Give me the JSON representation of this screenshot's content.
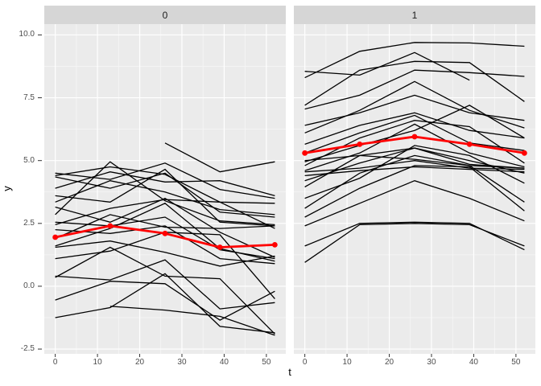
{
  "chart_data": {
    "type": "line",
    "title": "",
    "xlabel": "t",
    "ylabel": "y",
    "facet_variable_values": [
      "0",
      "1"
    ],
    "x": [
      0,
      13,
      26,
      39,
      52
    ],
    "x_tick_labels": [
      "0",
      "10",
      "20",
      "30",
      "40",
      "50"
    ],
    "x_tick_values": [
      0,
      10,
      20,
      30,
      40,
      50
    ],
    "x_minor_values": [
      5,
      15,
      25,
      35,
      45
    ],
    "y_tick_labels": [
      "10.0",
      "7.5",
      "5.0",
      "2.5",
      "0.0",
      "-2.5"
    ],
    "y_tick_values": [
      10.0,
      7.5,
      5.0,
      2.5,
      0.0,
      -2.5
    ],
    "y_minor_values": [
      8.75,
      6.25,
      3.75,
      1.25,
      -1.25
    ],
    "xlim": [
      -2.6,
      54.6
    ],
    "ylim": [
      -2.69,
      10.43
    ],
    "grid": "major+minor white on grey panel",
    "legend_position": "none",
    "colors": {
      "panel_background": "#EBEBEB",
      "strip_background": "#D6D6D6",
      "grid_major": "#FFFFFF",
      "grid_minor": "#F7F7F7",
      "trajectory_line": "#000000",
      "mean_line": "#FF0000",
      "axis_text": "#4D4D4D",
      "axis_tick_mark": "#333333",
      "figure_background": "#FFFFFF"
    },
    "facets": [
      {
        "label": "0",
        "mean_series": {
          "name": "mean",
          "values": [
            1.95,
            2.4,
            2.1,
            1.55,
            1.65
          ]
        },
        "lines": [
          [
            2.85,
            4.95,
            3.4,
            2.6,
            2.45
          ],
          [
            4.5,
            4.25,
            4.9,
            3.85,
            3.5
          ],
          [
            4.4,
            4.75,
            4.45,
            3.35,
            3.3
          ],
          [
            3.9,
            4.55,
            4.15,
            4.2,
            3.6
          ],
          [
            3.6,
            3.35,
            4.65,
            2.55,
            2.4
          ],
          [
            3.35,
            4.2,
            3.75,
            3.05,
            2.85
          ],
          [
            3.15,
            2.55,
            3.5,
            2.15,
            1.15
          ],
          [
            2.55,
            2.4,
            2.75,
            1.45,
            1.1
          ],
          [
            2.45,
            3.1,
            3.45,
            3.35,
            2.3
          ],
          [
            2.25,
            2.1,
            2.4,
            1.1,
            0.9
          ],
          [
            1.9,
            2.85,
            2.35,
            2.3,
            2.4
          ],
          [
            1.6,
            2.3,
            3.3,
            1.5,
            1.0
          ],
          [
            1.1,
            1.4,
            2.15,
            2.05,
            -0.5
          ],
          [
            0.4,
            0.25,
            1.05,
            -0.9,
            -0.65
          ],
          [
            0.35,
            1.55,
            0.4,
            0.3,
            -1.9
          ],
          [
            -0.55,
            0.2,
            0.1,
            -1.35,
            -0.2
          ],
          [
            -1.25,
            -0.85,
            0.5,
            -1.6,
            -1.85
          ],
          [
            null,
            -0.8,
            -0.95,
            -1.2,
            -1.95
          ],
          [
            null,
            null,
            5.7,
            4.55,
            4.95
          ],
          [
            1.55,
            1.8,
            1.35,
            0.8,
            1.2
          ],
          [
            4.35,
            3.9,
            4.5,
            2.95,
            2.75
          ]
        ]
      },
      {
        "label": "1",
        "mean_series": {
          "name": "mean",
          "values": [
            5.3,
            5.65,
            5.95,
            5.65,
            5.3
          ]
        },
        "lines": [
          [
            8.3,
            9.35,
            9.7,
            9.68,
            9.55
          ],
          [
            8.55,
            8.4,
            9.3,
            8.2,
            null
          ],
          [
            7.2,
            8.6,
            8.95,
            8.9,
            7.35
          ],
          [
            7.05,
            7.6,
            8.6,
            8.5,
            8.35
          ],
          [
            6.4,
            6.9,
            7.6,
            6.9,
            6.6
          ],
          [
            6.1,
            7.0,
            8.15,
            7.0,
            6.3
          ],
          [
            5.65,
            6.4,
            6.9,
            6.2,
            5.9
          ],
          [
            5.3,
            6.1,
            6.8,
            5.7,
            5.4
          ],
          [
            4.95,
            5.6,
            6.2,
            7.2,
            5.9
          ],
          [
            4.8,
            5.9,
            6.6,
            6.35,
            4.9
          ],
          [
            4.6,
            5.3,
            6.45,
            5.3,
            4.75
          ],
          [
            4.55,
            4.7,
            5.0,
            4.7,
            4.65
          ],
          [
            4.4,
            4.6,
            4.75,
            4.65,
            4.55
          ],
          [
            4.2,
            4.9,
            5.5,
            5.0,
            4.5
          ],
          [
            3.95,
            5.2,
            5.5,
            4.85,
            4.7
          ],
          [
            3.5,
            4.3,
            5.6,
            5.2,
            4.1
          ],
          [
            3.1,
            4.5,
            5.2,
            4.8,
            3.35
          ],
          [
            2.75,
            3.9,
            4.8,
            4.75,
            3.0
          ],
          [
            2.4,
            3.3,
            4.2,
            3.5,
            2.6
          ],
          [
            1.6,
            2.5,
            2.55,
            2.5,
            1.45
          ],
          [
            0.95,
            2.45,
            2.5,
            2.45,
            1.6
          ],
          [
            5.0,
            5.2,
            5.05,
            4.8,
            4.7
          ]
        ]
      }
    ]
  }
}
